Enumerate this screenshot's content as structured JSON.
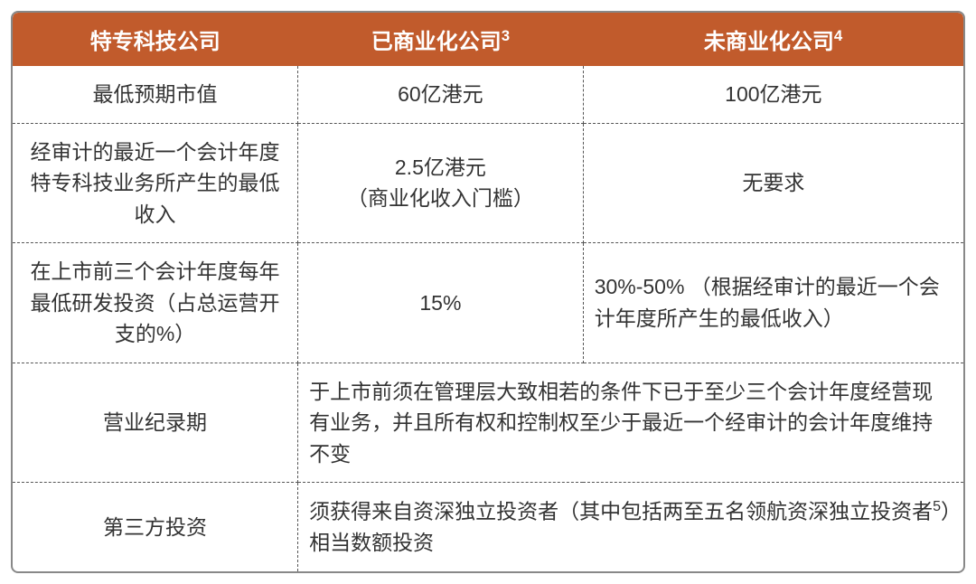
{
  "table": {
    "header_bg": "#c15b2c",
    "header_fg": "#ffffff",
    "border_color": "#888888",
    "dash_color": "#555555",
    "text_color": "#333333",
    "font_size_header": 24,
    "font_size_body": 23,
    "columns": [
      {
        "label": "特专科技公司",
        "sup": ""
      },
      {
        "label": "已商业化公司",
        "sup": "3"
      },
      {
        "label": "未商业化公司",
        "sup": "4"
      }
    ],
    "rows": [
      {
        "label": "最低预期市值",
        "c2": "60亿港元",
        "c3": "100亿港元",
        "merge": false
      },
      {
        "label": "经审计的最近一个会计年度特专科技业务所产生的最低收入",
        "c2": "2.5亿港元\n（商业化收入门槛）",
        "c3": "无要求",
        "merge": false
      },
      {
        "label": "在上市前三个会计年度每年最低研发投资（占总运营开支的%）",
        "c2": "15%",
        "c3": "30%-50% （根据经审计的最近一个会计年度所产生的最低收入）",
        "merge": false
      },
      {
        "label": "营业纪录期",
        "merged": "于上市前须在管理层大致相若的条件下已于至少三个会计年度经营现有业务，并且所有权和控制权至少于最近一个经审计的会计年度维持不变",
        "merge": true
      },
      {
        "label": "第三方投资",
        "merged_pre": "须获得来自资深独立投资者（其中包括两至五名领航资深独立投资者",
        "merged_sup": "5",
        "merged_post": "）相当数额投资",
        "merge": true,
        "last": true
      }
    ]
  }
}
